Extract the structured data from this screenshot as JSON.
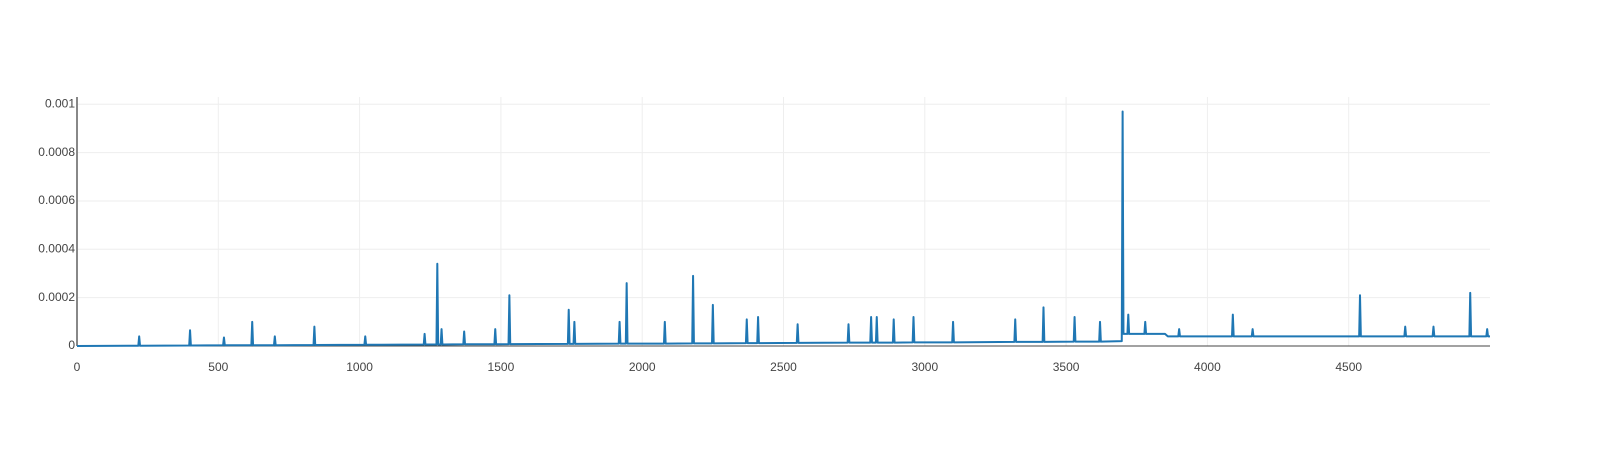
{
  "chart_data": {
    "type": "line",
    "x": [
      0,
      217,
      220,
      223,
      397,
      400,
      403,
      517,
      520,
      523,
      617,
      620,
      623,
      697,
      700,
      703,
      837,
      840,
      843,
      1017,
      1020,
      1023,
      1227,
      1230,
      1233,
      1272,
      1275,
      1278,
      1287,
      1290,
      1293,
      1367,
      1370,
      1373,
      1477,
      1480,
      1483,
      1527,
      1530,
      1533,
      1737,
      1740,
      1743,
      1757,
      1760,
      1763,
      1917,
      1920,
      1923,
      1942,
      1945,
      1948,
      2077,
      2080,
      2083,
      2177,
      2180,
      2183,
      2247,
      2250,
      2253,
      2367,
      2370,
      2373,
      2407,
      2410,
      2413,
      2547,
      2550,
      2553,
      2727,
      2730,
      2733,
      2807,
      2810,
      2813,
      2827,
      2830,
      2833,
      2887,
      2890,
      2893,
      2957,
      2960,
      2963,
      3097,
      3100,
      3103,
      3317,
      3320,
      3323,
      3417,
      3420,
      3423,
      3527,
      3530,
      3533,
      3617,
      3620,
      3623,
      3697,
      3700,
      3703,
      3717,
      3720,
      3723,
      3777,
      3780,
      3783,
      3850,
      3860,
      3897,
      3900,
      3903,
      4087,
      4090,
      4093,
      4157,
      4160,
      4163,
      4537,
      4540,
      4543,
      4697,
      4700,
      4703,
      4797,
      4800,
      4803,
      4927,
      4930,
      4933,
      4987,
      4990,
      4993,
      5000
    ],
    "series": [
      {
        "color": "#1f77b4",
        "values": [
          0,
          1e-06,
          4e-05,
          1e-06,
          2e-06,
          6.5e-05,
          2e-06,
          3e-06,
          3.5e-05,
          3e-06,
          3e-06,
          0.0001,
          3e-06,
          3e-06,
          4e-05,
          3e-06,
          4e-06,
          8e-05,
          4e-06,
          5e-06,
          4e-05,
          5e-06,
          6e-06,
          5e-05,
          6e-06,
          6e-06,
          0.00034,
          6e-06,
          6e-06,
          7e-05,
          6e-06,
          7e-06,
          6e-05,
          7e-06,
          7e-06,
          7e-05,
          7e-06,
          8e-06,
          0.00021,
          8e-06,
          9e-06,
          0.00015,
          9e-06,
          9e-06,
          0.0001,
          9e-06,
          1e-05,
          0.0001,
          1e-05,
          1e-05,
          0.00026,
          1e-05,
          1e-05,
          0.0001,
          1e-05,
          1.1e-05,
          0.00029,
          1.1e-05,
          1.1e-05,
          0.00017,
          1.1e-05,
          1.2e-05,
          0.00011,
          1.2e-05,
          1.2e-05,
          0.00012,
          1.2e-05,
          1.3e-05,
          9e-05,
          1.3e-05,
          1.4e-05,
          9e-05,
          1.4e-05,
          1.4e-05,
          0.00012,
          1.4e-05,
          1.4e-05,
          0.00012,
          1.4e-05,
          1.4e-05,
          0.00011,
          1.4e-05,
          1.5e-05,
          0.00012,
          1.5e-05,
          1.5e-05,
          0.0001,
          1.5e-05,
          1.7e-05,
          0.00011,
          1.7e-05,
          1.7e-05,
          0.00016,
          1.7e-05,
          1.8e-05,
          0.00012,
          1.8e-05,
          1.8e-05,
          0.0001,
          1.8e-05,
          2e-05,
          0.00097,
          5e-05,
          5e-05,
          0.00013,
          5e-05,
          5e-05,
          0.0001,
          5e-05,
          5e-05,
          4e-05,
          4e-05,
          7e-05,
          4e-05,
          4e-05,
          0.00013,
          4e-05,
          4e-05,
          7e-05,
          4e-05,
          4e-05,
          0.00021,
          4e-05,
          4e-05,
          8e-05,
          4e-05,
          4e-05,
          8e-05,
          4e-05,
          4e-05,
          0.00022,
          4e-05,
          4e-05,
          7e-05,
          4e-05,
          4e-05
        ]
      }
    ],
    "xlim": [
      0,
      5000
    ],
    "xticks": [
      0,
      500,
      1000,
      1500,
      2000,
      2500,
      3000,
      3500,
      4000,
      4500
    ],
    "ylim": [
      0,
      0.00103
    ],
    "yticks": [
      0,
      0.0002,
      0.0004,
      0.0006,
      0.0008,
      0.001
    ],
    "grid": true
  }
}
